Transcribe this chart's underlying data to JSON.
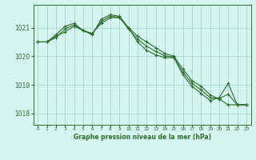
{
  "title": "Graphe pression niveau de la mer (hPa)",
  "bg_color": "#d4f5f0",
  "grid_color": "#a8d8d0",
  "line_color": "#2d6e2d",
  "x_ticks": [
    0,
    1,
    2,
    3,
    4,
    5,
    6,
    7,
    8,
    9,
    10,
    11,
    12,
    13,
    14,
    15,
    16,
    17,
    18,
    19,
    20,
    21,
    22,
    23
  ],
  "y_ticks": [
    1018,
    1019,
    1020,
    1021
  ],
  "xlim": [
    -0.5,
    23.5
  ],
  "ylim": [
    1017.6,
    1021.8
  ],
  "line1": {
    "x": [
      0,
      1,
      2,
      3,
      4,
      5,
      6,
      7,
      8,
      9,
      10,
      11,
      12,
      13,
      14,
      15,
      16,
      17,
      18,
      19,
      20,
      21,
      22,
      23
    ],
    "y": [
      1020.5,
      1020.5,
      1020.7,
      1020.85,
      1021.05,
      1020.9,
      1020.8,
      1021.15,
      1021.35,
      1021.35,
      1021.0,
      1020.7,
      1020.5,
      1020.3,
      1020.1,
      1020.0,
      1019.55,
      1019.15,
      1018.95,
      1018.65,
      1018.5,
      1018.3,
      1018.3,
      1018.3
    ]
  },
  "line2": {
    "x": [
      0,
      1,
      2,
      3,
      4,
      5,
      6,
      7,
      8,
      9,
      10,
      11,
      12,
      13,
      14,
      15,
      16,
      17,
      18,
      19,
      20,
      21,
      22,
      23
    ],
    "y": [
      1020.5,
      1020.5,
      1020.75,
      1021.05,
      1021.15,
      1020.9,
      1020.75,
      1021.3,
      1021.45,
      1021.4,
      1021.0,
      1020.5,
      1020.2,
      1020.05,
      1019.95,
      1019.95,
      1019.35,
      1018.95,
      1018.7,
      1018.45,
      1018.55,
      1019.05,
      1018.3,
      1018.3
    ]
  },
  "line3": {
    "x": [
      0,
      1,
      2,
      3,
      4,
      5,
      6,
      7,
      8,
      9,
      10,
      11,
      12,
      13,
      14,
      15,
      16,
      17,
      18,
      19,
      20,
      21,
      22,
      23
    ],
    "y": [
      1020.5,
      1020.5,
      1020.65,
      1020.95,
      1021.1,
      1020.9,
      1020.78,
      1021.22,
      1021.4,
      1021.37,
      1020.95,
      1020.6,
      1020.35,
      1020.17,
      1020.02,
      1019.97,
      1019.44,
      1019.05,
      1018.82,
      1018.55,
      1018.52,
      1018.67,
      1018.3,
      1018.3
    ]
  }
}
